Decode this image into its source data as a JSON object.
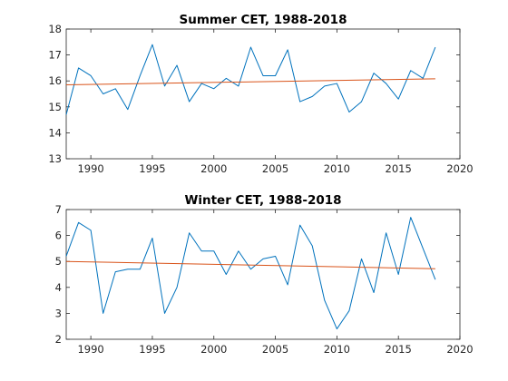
{
  "colors": {
    "data_line": "#0072BD",
    "trend_line": "#D95319",
    "axes": "#262626"
  },
  "chart_data": [
    {
      "type": "line",
      "title": "Summer CET, 1988-2018",
      "xlabel": "",
      "ylabel": "",
      "xlim": [
        1988,
        2020
      ],
      "ylim": [
        13,
        18
      ],
      "xticks": [
        1990,
        1995,
        2000,
        2005,
        2010,
        2015,
        2020
      ],
      "yticks": [
        13,
        14,
        15,
        16,
        17,
        18
      ],
      "grid": false,
      "series": [
        {
          "x": [
            1988,
            1989,
            1990,
            1991,
            1992,
            1993,
            1994,
            1995,
            1996,
            1997,
            1998,
            1999,
            2000,
            2001,
            2002,
            2003,
            2004,
            2005,
            2006,
            2007,
            2008,
            2009,
            2010,
            2011,
            2012,
            2013,
            2014,
            2015,
            2016,
            2017,
            2018
          ],
          "values": [
            14.7,
            16.5,
            16.2,
            15.5,
            15.7,
            14.9,
            16.2,
            17.4,
            15.8,
            16.6,
            15.2,
            15.9,
            15.7,
            16.1,
            15.8,
            17.3,
            16.2,
            16.2,
            17.2,
            15.2,
            15.4,
            15.8,
            15.9,
            14.8,
            15.2,
            16.3,
            15.9,
            15.3,
            16.4,
            16.1,
            17.3
          ]
        },
        {
          "x": [
            1988,
            2018
          ],
          "values": [
            15.85,
            16.08
          ]
        }
      ]
    },
    {
      "type": "line",
      "title": "Winter CET, 1988-2018",
      "xlabel": "",
      "ylabel": "",
      "xlim": [
        1988,
        2020
      ],
      "ylim": [
        2,
        7
      ],
      "xticks": [
        1990,
        1995,
        2000,
        2005,
        2010,
        2015,
        2020
      ],
      "yticks": [
        2,
        3,
        4,
        5,
        6,
        7
      ],
      "grid": false,
      "series": [
        {
          "x": [
            1988,
            1989,
            1990,
            1991,
            1992,
            1993,
            1994,
            1995,
            1996,
            1997,
            1998,
            1999,
            2000,
            2001,
            2002,
            2003,
            2004,
            2005,
            2006,
            2007,
            2008,
            2009,
            2010,
            2011,
            2012,
            2013,
            2014,
            2015,
            2016,
            2017,
            2018
          ],
          "values": [
            5.2,
            6.5,
            6.2,
            3.0,
            4.6,
            4.7,
            4.7,
            5.9,
            3.0,
            4.0,
            6.1,
            5.4,
            5.4,
            4.5,
            5.4,
            4.7,
            5.1,
            5.2,
            4.1,
            6.4,
            5.6,
            3.5,
            2.4,
            3.1,
            5.1,
            3.8,
            6.1,
            4.5,
            6.7,
            5.5,
            4.3
          ]
        },
        {
          "x": [
            1988,
            2018
          ],
          "values": [
            5.0,
            4.72
          ]
        }
      ]
    }
  ]
}
